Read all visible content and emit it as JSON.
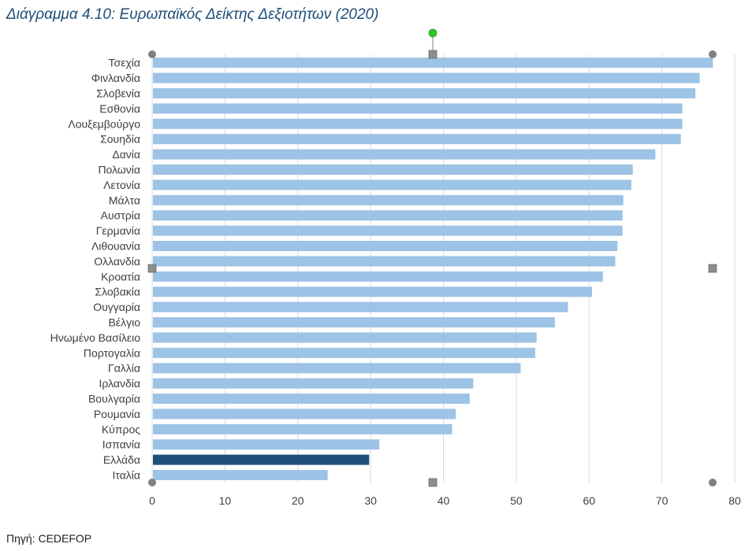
{
  "title": "Διάγραμμα 4.10: Ευρωπαϊκός Δείκτης Δεξιοτήτων (2020)",
  "source": "Πηγή: CEDEFOP",
  "chart_data": {
    "type": "bar",
    "orientation": "horizontal",
    "title": "Διάγραμμα 4.10: Ευρωπαϊκός Δείκτης Δεξιοτήτων (2020)",
    "xlabel": "",
    "ylabel": "",
    "xlim": [
      0,
      80
    ],
    "x_ticks": [
      0,
      10,
      20,
      30,
      40,
      50,
      60,
      70,
      80
    ],
    "grid": true,
    "categories": [
      "Τσεχία",
      "Φινλανδία",
      "Σλοβενία",
      "Εσθονία",
      "Λουξεμβούργο",
      "Σουηδία",
      "Δανία",
      "Πολωνία",
      "Λετονία",
      "Μάλτα",
      "Αυστρία",
      "Γερμανία",
      "Λιθουανία",
      "Ολλανδία",
      "Κροατία",
      "Σλοβακία",
      "Ουγγαρία",
      "Βέλγιο",
      "Ηνωμένο Βασίλειο",
      "Πορτογαλία",
      "Γαλλία",
      "Ιρλανδία",
      "Βουλγαρία",
      "Ρουμανία",
      "Κύπρος",
      "Ισπανία",
      "Ελλάδα",
      "Ιταλία"
    ],
    "values": [
      77.0,
      75.2,
      74.6,
      72.8,
      72.8,
      72.6,
      69.1,
      66.0,
      65.8,
      64.7,
      64.6,
      64.6,
      63.9,
      63.6,
      61.9,
      60.4,
      57.1,
      55.3,
      52.8,
      52.6,
      50.6,
      44.1,
      43.6,
      41.7,
      41.2,
      31.2,
      29.8,
      24.1
    ],
    "highlight": "Ελλάδα",
    "colors": {
      "bar": "#9dc3e6",
      "highlight": "#1f4e79",
      "grid": "#d9d9d9"
    }
  },
  "selection_handles": {
    "corner_color": "#808080",
    "side_color": "#8c8c8c",
    "rotate_color": "#22cc22"
  }
}
